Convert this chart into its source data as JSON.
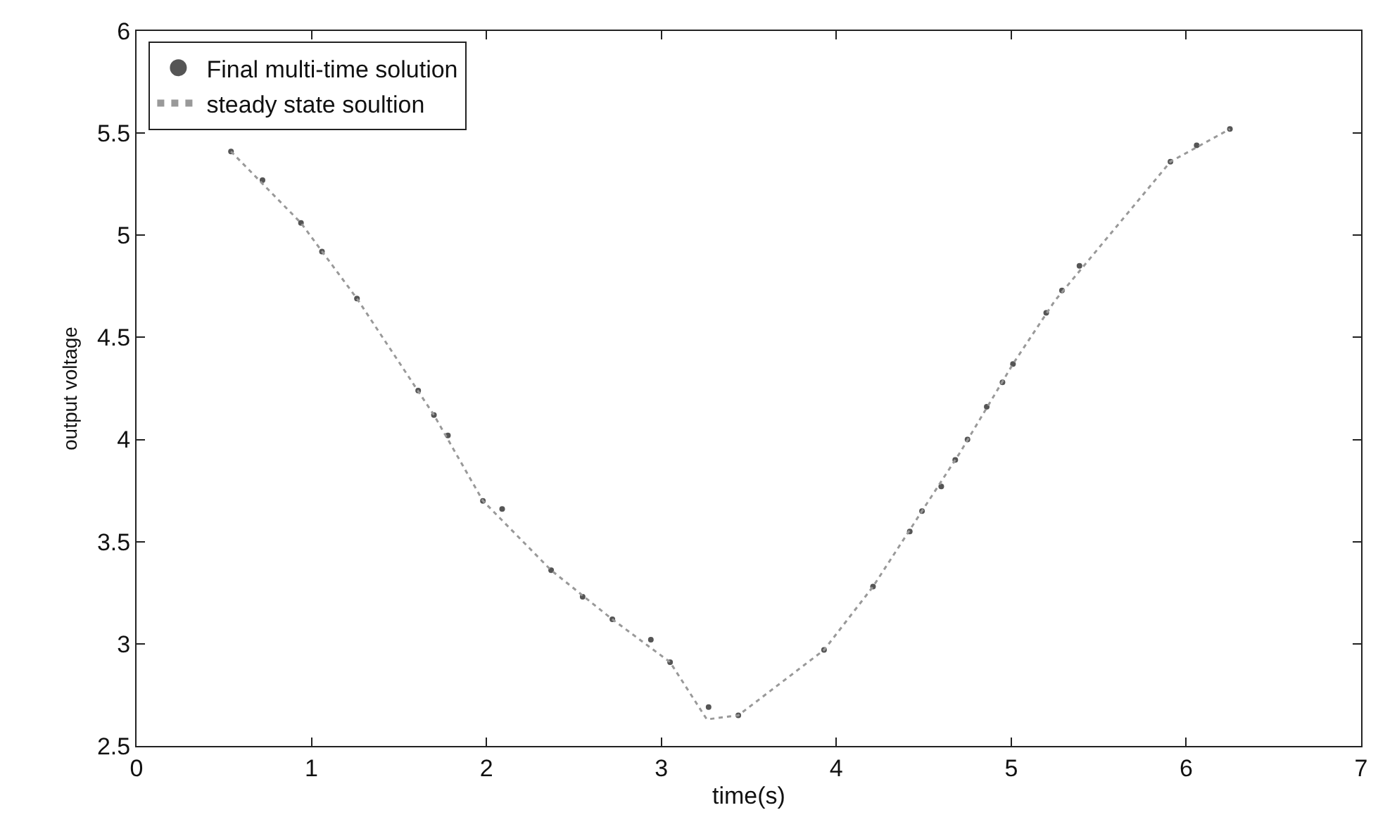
{
  "chart_data": {
    "type": "scatter",
    "xlabel": "time(s)",
    "ylabel": "output voltage",
    "xlim": [
      0,
      7
    ],
    "xticks": [
      0,
      1,
      2,
      3,
      4,
      5,
      6,
      7
    ],
    "ylim": [
      2.5,
      6
    ],
    "yticks": [
      2.5,
      3,
      3.5,
      4,
      4.5,
      5,
      5.5,
      6
    ],
    "grid": false,
    "legend": "top left",
    "series": [
      {
        "name": "Final multi-time solution",
        "marker": "circle",
        "color": "#555555",
        "x": [
          0.54,
          0.72,
          0.94,
          1.06,
          1.26,
          1.61,
          1.7,
          1.78,
          1.98,
          2.09,
          2.37,
          2.55,
          2.72,
          2.94,
          3.05,
          3.27,
          3.44,
          3.93,
          4.21,
          4.42,
          4.49,
          4.6,
          4.68,
          4.75,
          4.86,
          4.95,
          5.01,
          5.2,
          5.29,
          5.39,
          5.91,
          6.06,
          6.25
        ],
        "values": [
          5.41,
          5.27,
          5.06,
          4.92,
          4.69,
          4.24,
          4.12,
          4.02,
          3.7,
          3.66,
          3.36,
          3.23,
          3.12,
          3.02,
          2.91,
          2.69,
          2.65,
          2.97,
          3.28,
          3.55,
          3.65,
          3.77,
          3.9,
          4.0,
          4.16,
          4.28,
          4.37,
          4.62,
          4.73,
          4.85,
          5.36,
          5.44,
          5.52
        ]
      },
      {
        "name": "steady state soultion",
        "type": "line",
        "line_style": "dotted",
        "color": "#999999",
        "x": [
          0.54,
          0.94,
          1.26,
          1.7,
          1.98,
          2.37,
          2.72,
          3.05,
          3.26,
          3.44,
          3.93,
          4.21,
          4.49,
          4.71,
          5.01,
          5.25,
          5.91,
          6.25
        ],
        "values": [
          5.41,
          5.06,
          4.69,
          4.12,
          3.7,
          3.36,
          3.12,
          2.91,
          2.63,
          2.65,
          2.97,
          3.28,
          3.65,
          3.94,
          4.37,
          4.68,
          5.36,
          5.52
        ]
      }
    ]
  }
}
